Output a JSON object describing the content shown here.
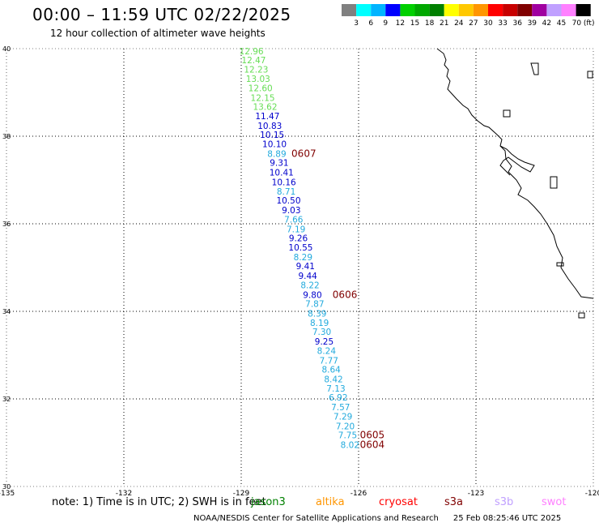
{
  "header": {
    "title": "00:00 – 11:59 UTC 02/22/2025",
    "subtitle": "12 hour collection of altimeter wave heights"
  },
  "colorbar": {
    "labels": [
      "3",
      "6",
      "9",
      "12",
      "15",
      "18",
      "21",
      "24",
      "27",
      "30",
      "33",
      "36",
      "39",
      "42",
      "45",
      "70 (ft)"
    ],
    "colors": [
      "#808080",
      "#00ffff",
      "#00b4ff",
      "#0000ff",
      "#00d000",
      "#00a800",
      "#008000",
      "#ffff00",
      "#ffc800",
      "#ff9600",
      "#ff0000",
      "#c80000",
      "#800000",
      "#a000a0",
      "#c0a0ff",
      "#ff80ff",
      "#000000"
    ]
  },
  "map": {
    "lon_ticks": [
      "-135",
      "-132",
      "-129",
      "-126",
      "-123",
      "-120"
    ],
    "lat_ticks": [
      "40",
      "38",
      "36",
      "34",
      "32",
      "30"
    ],
    "lon_range": [
      -135,
      -120
    ],
    "lat_range": [
      30,
      40
    ],
    "grid": true,
    "coastline_color": "#000000"
  },
  "track": {
    "labels": [
      {
        "lat": 39.87,
        "lon": -128.74,
        "v": "12.96",
        "c": "#66dd55"
      },
      {
        "lat": 39.67,
        "lon": -128.68,
        "v": "12.47",
        "c": "#66dd55"
      },
      {
        "lat": 39.45,
        "lon": -128.62,
        "v": "12.23",
        "c": "#66dd55"
      },
      {
        "lat": 39.24,
        "lon": -128.57,
        "v": "13.03",
        "c": "#66dd55"
      },
      {
        "lat": 39.03,
        "lon": -128.51,
        "v": "12.60",
        "c": "#66dd55"
      },
      {
        "lat": 38.81,
        "lon": -128.45,
        "v": "12.15",
        "c": "#66dd55"
      },
      {
        "lat": 38.6,
        "lon": -128.39,
        "v": "13.62",
        "c": "#66dd55"
      },
      {
        "lat": 38.39,
        "lon": -128.33,
        "v": "11.47",
        "c": "#0000cc"
      },
      {
        "lat": 38.17,
        "lon": -128.27,
        "v": "10.83",
        "c": "#0000cc"
      },
      {
        "lat": 37.96,
        "lon": -128.21,
        "v": "10.15",
        "c": "#0000cc"
      },
      {
        "lat": 37.75,
        "lon": -128.15,
        "v": "10.10",
        "c": "#0000cc"
      },
      {
        "lat": 37.53,
        "lon": -128.09,
        "v": "8.89",
        "c": "#22aadd"
      },
      {
        "lat": 37.32,
        "lon": -128.03,
        "v": "9.31",
        "c": "#0000cc"
      },
      {
        "lat": 37.1,
        "lon": -127.97,
        "v": "10.41",
        "c": "#0000cc"
      },
      {
        "lat": 36.88,
        "lon": -127.91,
        "v": "10.16",
        "c": "#0000cc"
      },
      {
        "lat": 36.67,
        "lon": -127.85,
        "v": "8.71",
        "c": "#22aadd"
      },
      {
        "lat": 36.46,
        "lon": -127.79,
        "v": "10.50",
        "c": "#0000cc"
      },
      {
        "lat": 36.24,
        "lon": -127.72,
        "v": "9.03",
        "c": "#0000cc"
      },
      {
        "lat": 36.03,
        "lon": -127.66,
        "v": "7.66",
        "c": "#22aadd"
      },
      {
        "lat": 35.81,
        "lon": -127.6,
        "v": "7.19",
        "c": "#22aadd"
      },
      {
        "lat": 35.6,
        "lon": -127.54,
        "v": "9.26",
        "c": "#0000cc"
      },
      {
        "lat": 35.39,
        "lon": -127.48,
        "v": "10.55",
        "c": "#0000cc"
      },
      {
        "lat": 35.17,
        "lon": -127.42,
        "v": "8.29",
        "c": "#22aadd"
      },
      {
        "lat": 34.96,
        "lon": -127.36,
        "v": "9.41",
        "c": "#0000cc"
      },
      {
        "lat": 34.74,
        "lon": -127.3,
        "v": "9.44",
        "c": "#0000cc"
      },
      {
        "lat": 34.53,
        "lon": -127.24,
        "v": "8.22",
        "c": "#22aadd"
      },
      {
        "lat": 34.31,
        "lon": -127.18,
        "v": "9.80",
        "c": "#0000cc"
      },
      {
        "lat": 34.1,
        "lon": -127.12,
        "v": "7.87",
        "c": "#22aadd"
      },
      {
        "lat": 33.88,
        "lon": -127.06,
        "v": "8.39",
        "c": "#22aadd"
      },
      {
        "lat": 33.67,
        "lon": -127.0,
        "v": "8.19",
        "c": "#22aadd"
      },
      {
        "lat": 33.46,
        "lon": -126.94,
        "v": "7.30",
        "c": "#22aadd"
      },
      {
        "lat": 33.24,
        "lon": -126.88,
        "v": "9.25",
        "c": "#0000cc"
      },
      {
        "lat": 33.03,
        "lon": -126.82,
        "v": "8.24",
        "c": "#22aadd"
      },
      {
        "lat": 32.81,
        "lon": -126.76,
        "v": "7.77",
        "c": "#22aadd"
      },
      {
        "lat": 32.6,
        "lon": -126.7,
        "v": "8.64",
        "c": "#22aadd"
      },
      {
        "lat": 32.38,
        "lon": -126.64,
        "v": "8.42",
        "c": "#22aadd"
      },
      {
        "lat": 32.17,
        "lon": -126.58,
        "v": "7.13",
        "c": "#22aadd"
      },
      {
        "lat": 31.96,
        "lon": -126.52,
        "v": "6.92",
        "c": "#22aadd"
      },
      {
        "lat": 31.74,
        "lon": -126.46,
        "v": "7.57",
        "c": "#22aadd"
      },
      {
        "lat": 31.53,
        "lon": -126.4,
        "v": "7.29",
        "c": "#22aadd"
      },
      {
        "lat": 31.31,
        "lon": -126.34,
        "v": "7.20",
        "c": "#22aadd"
      },
      {
        "lat": 31.1,
        "lon": -126.28,
        "v": "7.75",
        "c": "#22aadd"
      },
      {
        "lat": 30.88,
        "lon": -126.22,
        "v": "8.02",
        "c": "#22aadd"
      }
    ],
    "time_labels": [
      {
        "lat": 37.53,
        "lon": -127.4,
        "v": "0607"
      },
      {
        "lat": 34.31,
        "lon": -126.35,
        "v": "0606"
      },
      {
        "lat": 31.1,
        "lon": -125.65,
        "v": "0605"
      },
      {
        "lat": 30.88,
        "lon": -125.65,
        "v": "0604"
      }
    ],
    "time_label_color": "#800000"
  },
  "note": {
    "text": "note:  1) Time is in UTC;  2) SWH is in feet",
    "satellites": [
      {
        "name": "jason3",
        "color": "#008000"
      },
      {
        "name": "altika",
        "color": "#ff9600"
      },
      {
        "name": "cryosat",
        "color": "#ff0000"
      },
      {
        "name": "s3a",
        "color": "#800000"
      },
      {
        "name": "s3b",
        "color": "#c0a0ff"
      },
      {
        "name": "swot",
        "color": "#ff80ff"
      }
    ]
  },
  "footer": {
    "credit": "NOAA/NESDIS Center for Satellite Applications and Research",
    "timestamp": "25 Feb 08:25:46 UTC 2025"
  }
}
